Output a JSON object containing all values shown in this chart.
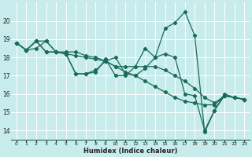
{
  "xlabel": "Humidex (Indice chaleur)",
  "background_color": "#c8ecec",
  "grid_color": "#ffffff",
  "line_color": "#1a6b5a",
  "xlim": [
    -0.5,
    23.5
  ],
  "ylim": [
    13.5,
    21.0
  ],
  "xticks": [
    0,
    1,
    2,
    3,
    4,
    5,
    6,
    7,
    8,
    9,
    10,
    11,
    12,
    13,
    14,
    15,
    16,
    17,
    18,
    19,
    20,
    21,
    22,
    23
  ],
  "yticks": [
    14,
    15,
    16,
    17,
    18,
    19,
    20
  ],
  "series": [
    {
      "x": [
        0,
        1,
        2,
        3,
        4,
        5,
        6,
        7,
        8,
        9,
        10,
        11,
        12,
        13,
        14,
        15,
        16,
        17,
        18,
        19,
        20,
        21,
        22,
        23
      ],
      "y": [
        18.8,
        18.4,
        18.5,
        18.9,
        18.3,
        18.2,
        17.1,
        17.1,
        17.2,
        17.9,
        17.0,
        17.0,
        17.5,
        18.5,
        18.0,
        19.6,
        19.9,
        20.5,
        19.2,
        13.9,
        15.1,
        15.9,
        15.8,
        15.7
      ]
    },
    {
      "x": [
        0,
        1,
        2,
        3,
        4,
        5,
        6,
        7,
        8,
        9,
        10,
        11,
        12,
        13,
        14,
        15,
        16,
        17,
        18,
        19,
        20,
        21,
        22,
        23
      ],
      "y": [
        18.8,
        18.4,
        18.9,
        18.3,
        18.3,
        18.2,
        18.1,
        18.0,
        17.9,
        17.8,
        17.5,
        17.5,
        17.5,
        17.5,
        17.5,
        17.3,
        17.0,
        16.7,
        16.3,
        15.8,
        15.5,
        15.9,
        15.8,
        15.7
      ]
    },
    {
      "x": [
        0,
        1,
        2,
        3,
        4,
        5,
        6,
        7,
        8,
        9,
        10,
        11,
        12,
        13,
        14,
        15,
        16,
        17,
        18,
        19,
        20,
        21,
        22,
        23
      ],
      "y": [
        18.8,
        18.4,
        18.9,
        18.3,
        18.3,
        18.2,
        17.1,
        17.1,
        17.3,
        17.8,
        18.0,
        17.1,
        17.0,
        17.4,
        18.0,
        18.2,
        18.0,
        16.0,
        15.9,
        14.0,
        15.1,
        16.0,
        15.8,
        15.7
      ]
    },
    {
      "x": [
        0,
        1,
        2,
        3,
        4,
        5,
        6,
        7,
        8,
        9,
        10,
        11,
        12,
        13,
        14,
        15,
        16,
        17,
        18,
        19,
        20,
        21,
        22,
        23
      ],
      "y": [
        18.8,
        18.4,
        18.9,
        18.9,
        18.3,
        18.3,
        18.3,
        18.1,
        18.0,
        17.8,
        17.5,
        17.2,
        17.0,
        16.7,
        16.4,
        16.1,
        15.8,
        15.6,
        15.5,
        15.4,
        15.4,
        15.9,
        15.8,
        15.7
      ]
    }
  ]
}
